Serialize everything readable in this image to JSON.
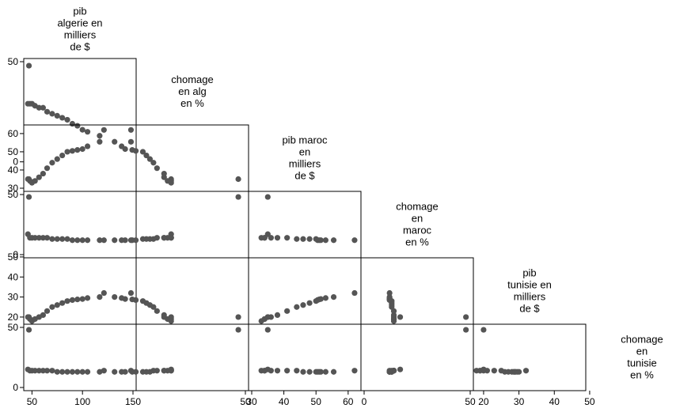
{
  "chart_data": {
    "type": "scatter",
    "variables": [
      {
        "name": [
          "pib",
          "algerie en",
          "milliers",
          "de $"
        ]
      },
      {
        "name": [
          "chomage",
          "en alg",
          "en %"
        ]
      },
      {
        "name": [
          "pib maroc",
          "en",
          "milliers",
          "de $"
        ]
      },
      {
        "name": [
          "chomage",
          "en",
          "maroc",
          "en %"
        ]
      },
      {
        "name": [
          "pib",
          "tunisie en",
          "milliers",
          "de $"
        ]
      },
      {
        "name": [
          "chomage",
          "en",
          "tunisie",
          "en %"
        ]
      }
    ],
    "ranges": [
      [
        45,
        150
      ],
      [
        20,
        50
      ],
      [
        30,
        63
      ],
      [
        0,
        50
      ],
      [
        18,
        48
      ],
      [
        0,
        50
      ]
    ],
    "y_ticks": [
      {
        "values": [
          0,
          50
        ],
        "labels": [
          "0",
          "50"
        ]
      },
      {
        "values": [
          30,
          40,
          50,
          60
        ],
        "labels": [
          "30",
          "40",
          "50",
          "60"
        ]
      },
      {
        "values": [
          0,
          50
        ],
        "labels": [
          "0",
          "50"
        ]
      },
      {
        "values": [
          20,
          30,
          40,
          50
        ],
        "labels": [
          "20",
          "30",
          "40",
          "50"
        ]
      },
      {
        "values": [
          0,
          50
        ],
        "labels": [
          "0",
          "50"
        ]
      }
    ],
    "x_ticks": [
      {
        "values": [
          50,
          100,
          150
        ],
        "labels": [
          "50",
          "100",
          "150"
        ]
      },
      {
        "values": [
          50
        ],
        "labels": [
          "50"
        ]
      },
      {
        "values": [
          30,
          40,
          50,
          60
        ],
        "labels": [
          "30",
          "40",
          "50",
          "60"
        ]
      },
      {
        "values": [
          0,
          50
        ],
        "labels": [
          "0",
          "50"
        ]
      },
      {
        "values": [
          20,
          30,
          40,
          50
        ],
        "labels": [
          "20",
          "30",
          "40",
          "50"
        ]
      }
    ],
    "observations": [
      [
        47,
        48,
        35,
        48,
        20,
        48
      ],
      [
        46,
        29,
        35,
        17,
        20,
        15
      ],
      [
        48,
        29,
        34,
        14,
        19,
        14
      ],
      [
        50,
        29,
        33,
        14,
        18,
        14
      ],
      [
        53,
        28,
        34,
        14,
        19,
        14
      ],
      [
        57,
        27,
        36,
        14,
        20,
        14
      ],
      [
        61,
        27,
        38,
        14,
        21,
        14
      ],
      [
        65,
        25,
        41,
        14,
        23,
        14
      ],
      [
        70,
        24,
        44,
        13,
        25,
        14
      ],
      [
        75,
        23,
        46,
        13,
        26,
        13
      ],
      [
        80,
        22,
        48,
        13,
        27,
        13
      ],
      [
        85,
        21,
        50,
        13,
        28,
        13
      ],
      [
        90,
        19,
        50.5,
        12,
        28.5,
        13
      ],
      [
        95,
        18,
        51,
        12,
        28.8,
        13
      ],
      [
        100,
        16,
        51.5,
        12,
        29,
        13
      ],
      [
        105,
        15,
        53,
        12,
        29.5,
        13
      ],
      [
        117,
        13,
        55.5,
        12,
        30,
        13
      ],
      [
        148,
        10,
        62,
        12,
        32,
        14
      ]
    ]
  }
}
